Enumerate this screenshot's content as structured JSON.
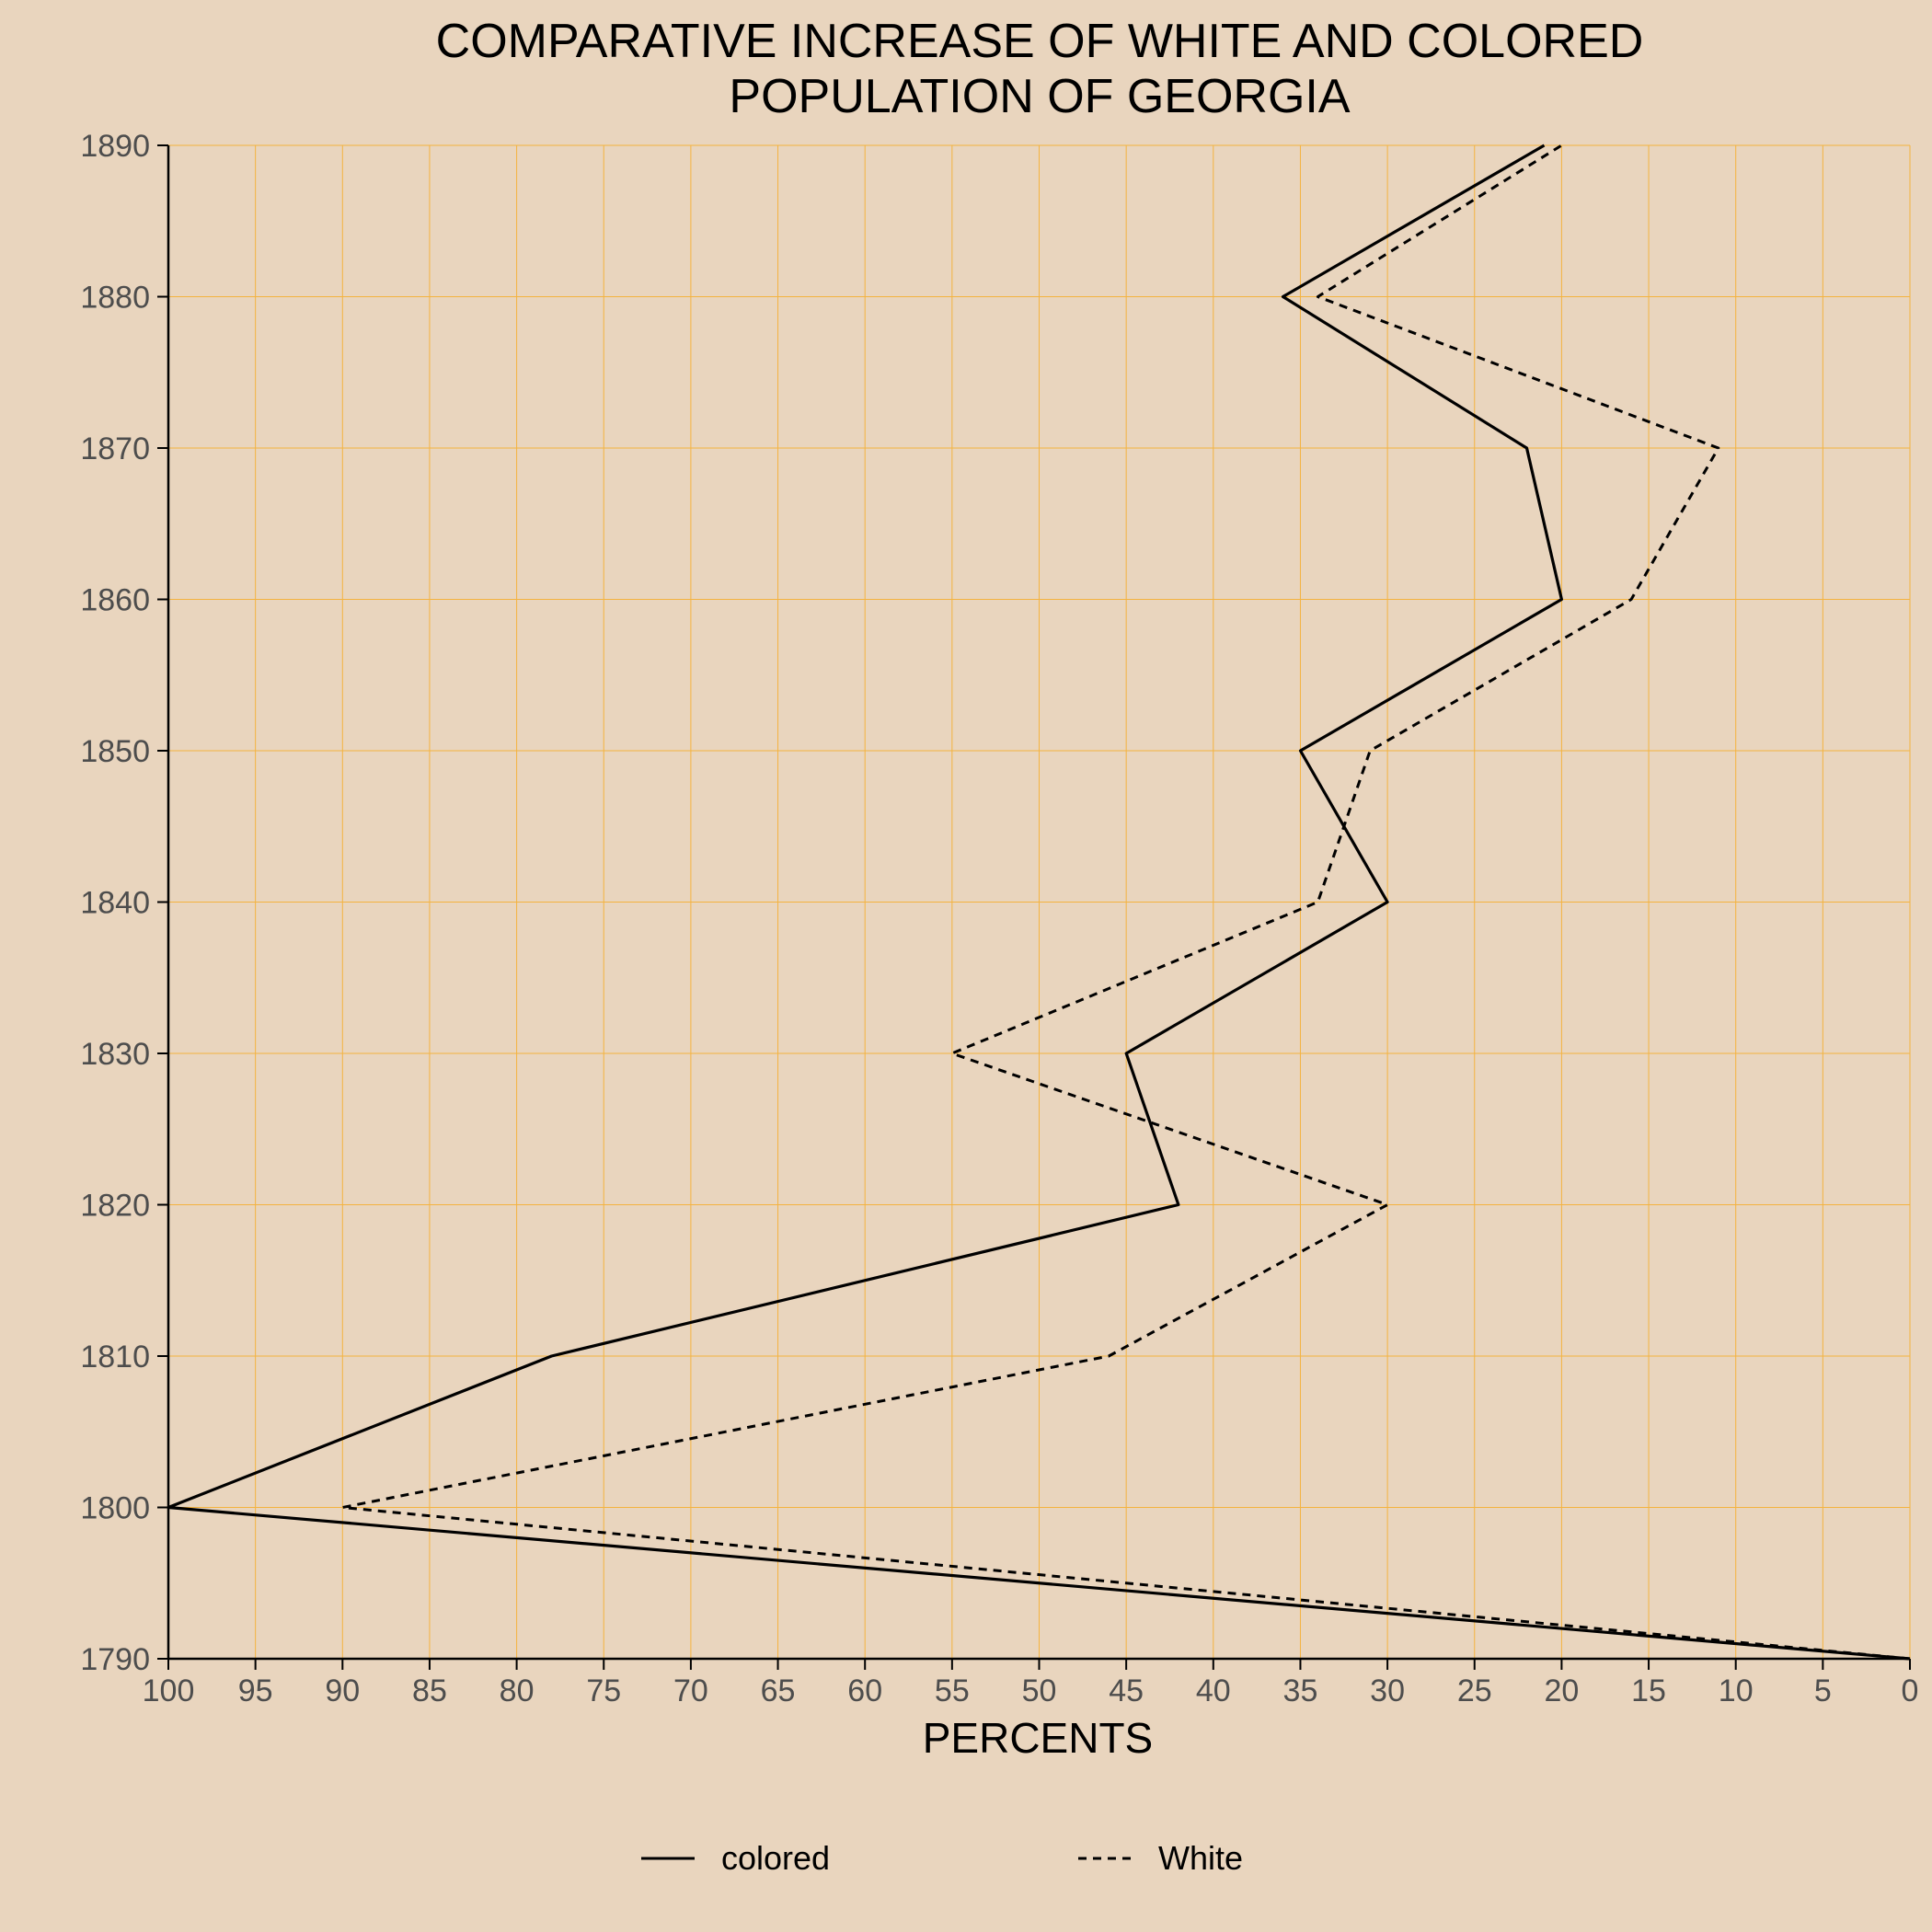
{
  "colors": {
    "background": "#e9d5be",
    "grid": "#f4b33f",
    "line": "#000000",
    "axis": "#000000",
    "tick_text": "#4d4d4d"
  },
  "chart_data": {
    "type": "line",
    "title_lines": [
      "COMPARATIVE INCREASE OF WHITE AND COLORED",
      "POPULATION OF GEORGIA"
    ],
    "xlabel": "PERCENTS",
    "ylabel": "",
    "orientation": "x = percent (reversed axis, 100 at left, 0 at right); y = year",
    "xlim": [
      100,
      0
    ],
    "ylim": [
      1790,
      1890
    ],
    "x_ticks": [
      "100",
      "95",
      "90",
      "85",
      "80",
      "75",
      "70",
      "65",
      "60",
      "55",
      "50",
      "45",
      "40",
      "35",
      "30",
      "25",
      "20",
      "15",
      "10",
      "5",
      "0"
    ],
    "y_ticks": [
      "1890",
      "1880",
      "1870",
      "1860",
      "1850",
      "1840",
      "1830",
      "1820",
      "1810",
      "1800",
      "1790"
    ],
    "grid": true,
    "legend_position": "bottom",
    "series": [
      {
        "name": "colored",
        "line_style": "solid",
        "points": [
          {
            "year": 1790,
            "percent": 0
          },
          {
            "year": 1800,
            "percent": 100
          },
          {
            "year": 1810,
            "percent": 78
          },
          {
            "year": 1820,
            "percent": 42
          },
          {
            "year": 1830,
            "percent": 45
          },
          {
            "year": 1840,
            "percent": 30
          },
          {
            "year": 1850,
            "percent": 35
          },
          {
            "year": 1860,
            "percent": 20
          },
          {
            "year": 1870,
            "percent": 22
          },
          {
            "year": 1880,
            "percent": 36
          },
          {
            "year": 1890,
            "percent": 21
          }
        ]
      },
      {
        "name": "White",
        "line_style": "dashed",
        "points": [
          {
            "year": 1790,
            "percent": 0
          },
          {
            "year": 1800,
            "percent": 90
          },
          {
            "year": 1810,
            "percent": 46
          },
          {
            "year": 1820,
            "percent": 30
          },
          {
            "year": 1830,
            "percent": 55
          },
          {
            "year": 1840,
            "percent": 34
          },
          {
            "year": 1850,
            "percent": 31
          },
          {
            "year": 1860,
            "percent": 16
          },
          {
            "year": 1870,
            "percent": 11
          },
          {
            "year": 1880,
            "percent": 34
          },
          {
            "year": 1890,
            "percent": 20
          }
        ]
      }
    ]
  }
}
